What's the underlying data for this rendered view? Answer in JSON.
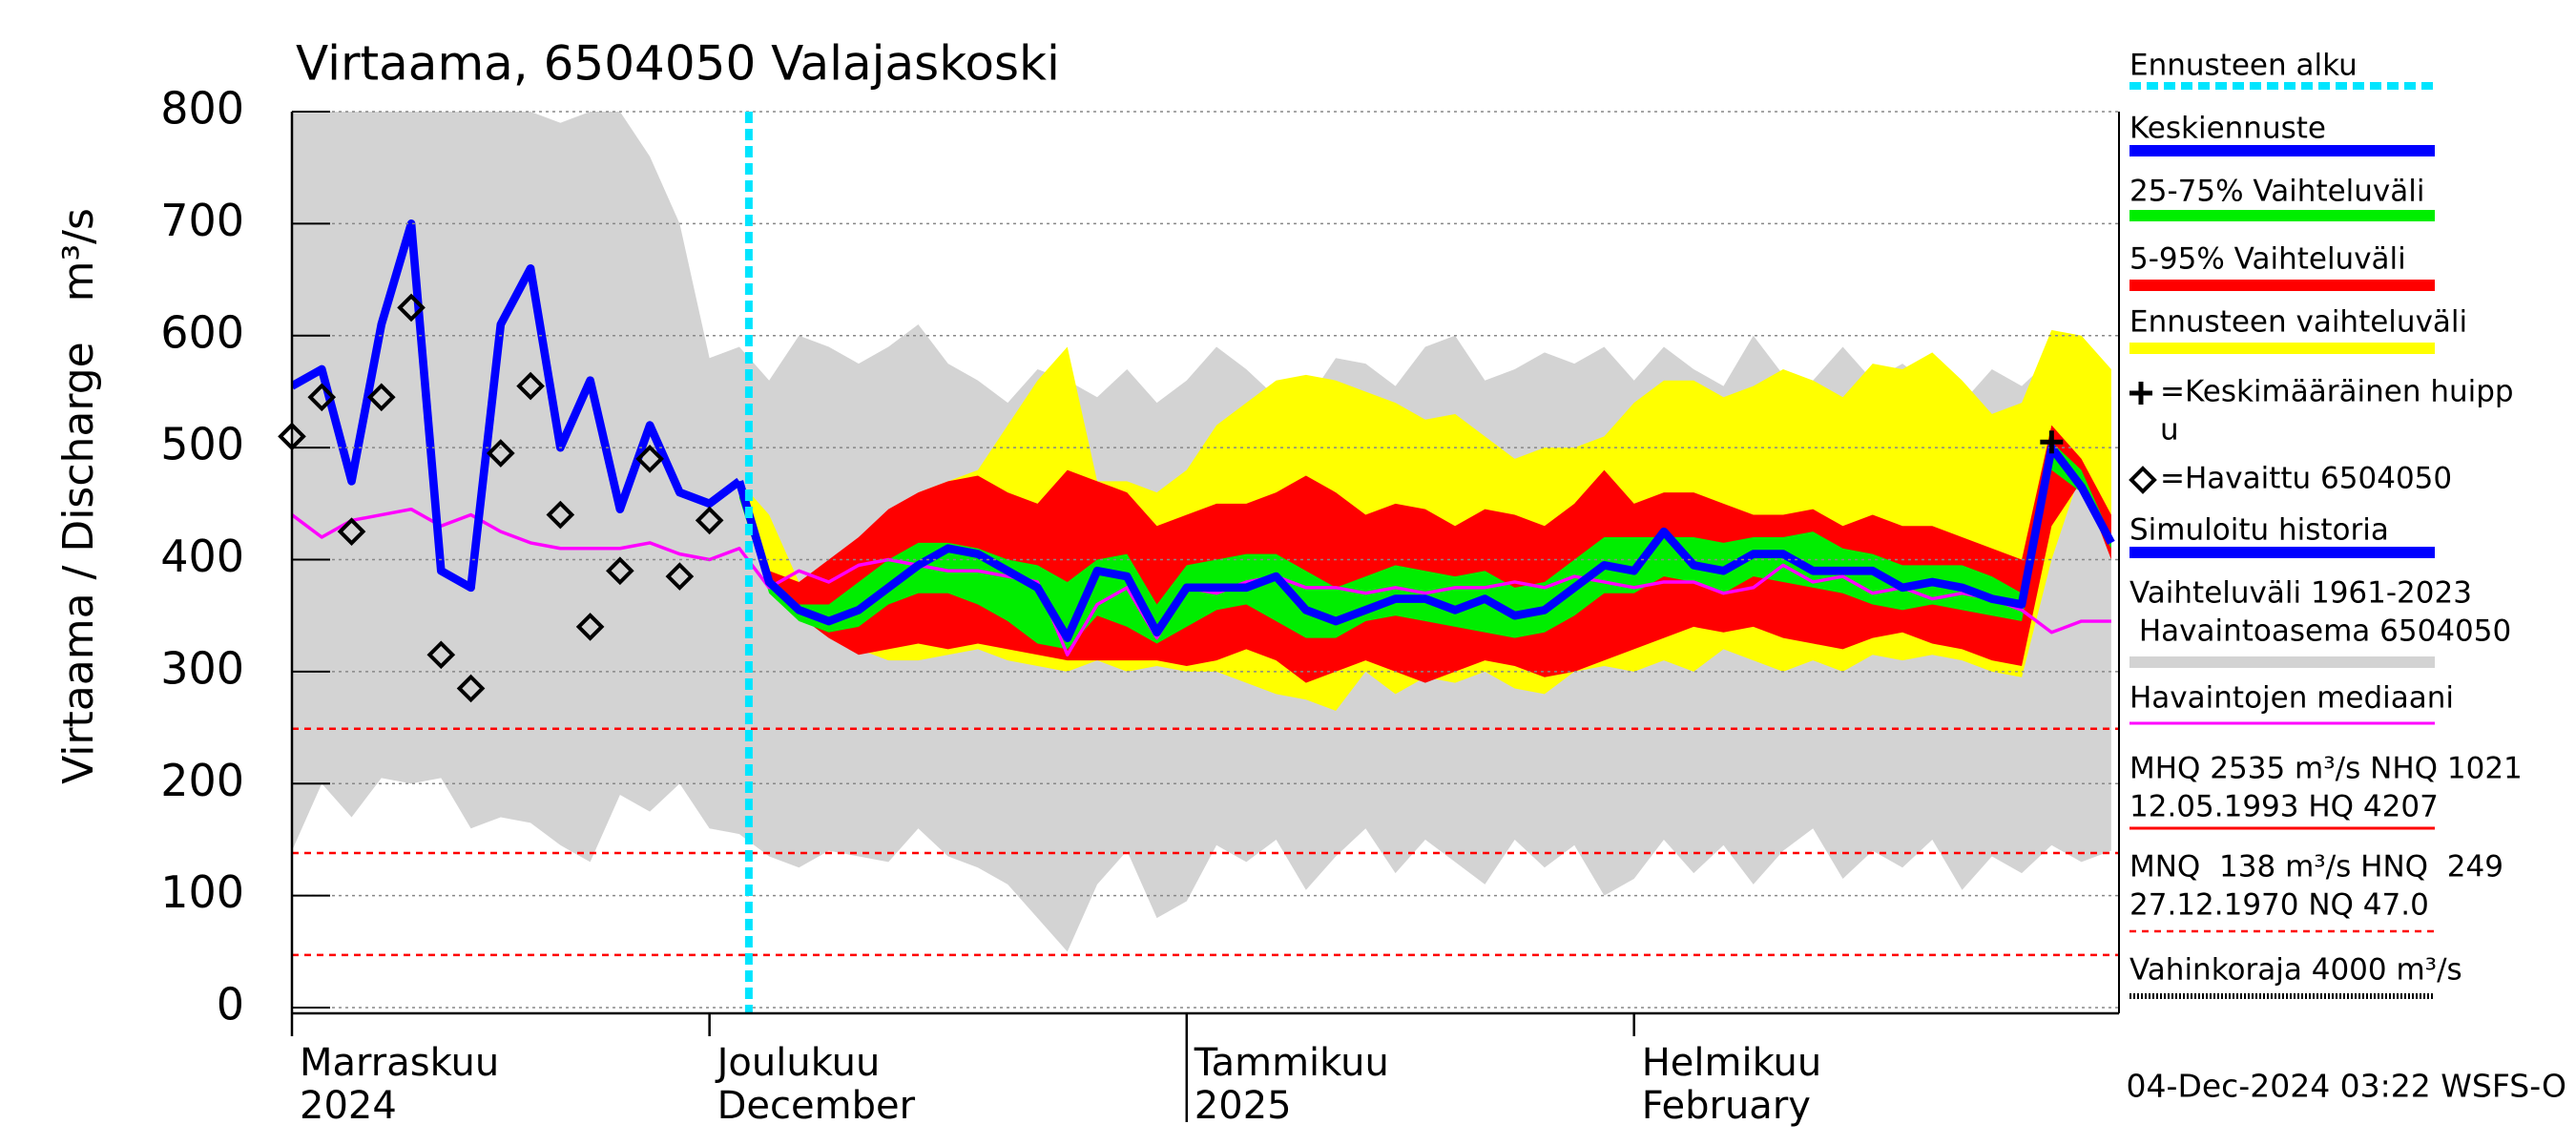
{
  "chart_data": {
    "type": "line",
    "title": "Virtaama, 6504050 Valajaskoski",
    "y_label": "Virtaama / Discharge   m³/s",
    "footer": "04-Dec-2024 03:22 WSFS-O",
    "categories": [
      "Marraskuu",
      null,
      null,
      null,
      null,
      null,
      null,
      null,
      null,
      null,
      null,
      null,
      null,
      null,
      "Joulukuu",
      null,
      null,
      null,
      null,
      null,
      null,
      null,
      null,
      null,
      null,
      null,
      null,
      null,
      null,
      null,
      "Tammikuu",
      null,
      null,
      null,
      null,
      null,
      null,
      null,
      null,
      null,
      null,
      null,
      null,
      null,
      null,
      "Helmikuu",
      null,
      null,
      null,
      null,
      null,
      null,
      null,
      null,
      null,
      null,
      null,
      null,
      null,
      null,
      null,
      null
    ],
    "categories_en": [
      "2024",
      null,
      null,
      null,
      null,
      null,
      null,
      null,
      null,
      null,
      null,
      null,
      null,
      null,
      "December",
      null,
      null,
      null,
      null,
      null,
      null,
      null,
      null,
      null,
      null,
      null,
      null,
      null,
      null,
      null,
      "2025",
      null,
      null,
      null,
      null,
      null,
      null,
      null,
      null,
      null,
      null,
      null,
      null,
      null,
      null,
      "February",
      null,
      null,
      null,
      null,
      null,
      null,
      null,
      null,
      null,
      null,
      null,
      null,
      null,
      null,
      null,
      null
    ],
    "ylim": [
      0,
      800
    ],
    "yticks": [
      0,
      100,
      200,
      300,
      400,
      500,
      600,
      700,
      800
    ],
    "grid": true,
    "bands": [
      {
        "color": "#d3d3d3",
        "high": [
          800,
          800,
          800,
          800,
          800,
          800,
          800,
          800,
          800,
          790,
          800,
          800,
          760,
          700,
          580,
          590,
          560,
          600,
          590,
          575,
          590,
          610,
          575,
          560,
          540,
          570,
          560,
          545,
          570,
          540,
          560,
          590,
          570,
          545,
          540,
          580,
          575,
          555,
          590,
          600,
          560,
          570,
          585,
          575,
          590,
          560,
          590,
          570,
          555,
          600,
          565,
          560,
          590,
          560,
          575,
          555,
          540,
          570,
          555,
          580,
          560,
          545
        ],
        "low": [
          140,
          200,
          170,
          205,
          200,
          205,
          160,
          170,
          165,
          145,
          130,
          190,
          175,
          200,
          160,
          155,
          135,
          125,
          140,
          135,
          130,
          160,
          135,
          125,
          110,
          80,
          50,
          110,
          140,
          80,
          95,
          145,
          130,
          150,
          105,
          135,
          160,
          120,
          150,
          130,
          110,
          150,
          125,
          145,
          100,
          115,
          150,
          120,
          145,
          110,
          140,
          160,
          115,
          140,
          125,
          150,
          105,
          135,
          120,
          145,
          130,
          140
        ]
      },
      {
        "color": "#ffff00",
        "high": [
          null,
          null,
          null,
          null,
          null,
          null,
          null,
          null,
          null,
          null,
          null,
          null,
          null,
          null,
          null,
          470,
          440,
          380,
          390,
          400,
          430,
          460,
          470,
          480,
          520,
          560,
          590,
          470,
          470,
          460,
          480,
          520,
          540,
          560,
          565,
          560,
          550,
          540,
          525,
          530,
          510,
          490,
          500,
          500,
          510,
          540,
          560,
          560,
          545,
          555,
          570,
          560,
          545,
          575,
          570,
          585,
          560,
          530,
          540,
          605,
          600,
          570
        ],
        "low": [
          null,
          null,
          null,
          null,
          null,
          null,
          null,
          null,
          null,
          null,
          null,
          null,
          null,
          null,
          null,
          470,
          390,
          360,
          340,
          320,
          310,
          310,
          315,
          320,
          310,
          305,
          300,
          310,
          300,
          305,
          300,
          300,
          290,
          280,
          275,
          265,
          300,
          280,
          295,
          290,
          300,
          285,
          280,
          300,
          305,
          300,
          310,
          300,
          320,
          310,
          300,
          310,
          300,
          315,
          310,
          315,
          310,
          300,
          295,
          400,
          480,
          430
        ]
      },
      {
        "color": "#ff0000",
        "high": [
          null,
          null,
          null,
          null,
          null,
          null,
          null,
          null,
          null,
          null,
          null,
          null,
          null,
          null,
          null,
          470,
          390,
          380,
          400,
          420,
          445,
          460,
          470,
          475,
          460,
          450,
          480,
          470,
          460,
          430,
          440,
          450,
          450,
          460,
          475,
          460,
          440,
          450,
          445,
          430,
          445,
          440,
          430,
          450,
          480,
          450,
          460,
          460,
          450,
          440,
          440,
          445,
          430,
          440,
          430,
          430,
          420,
          410,
          400,
          520,
          490,
          440
        ],
        "low": [
          null,
          null,
          null,
          null,
          null,
          null,
          null,
          null,
          null,
          null,
          null,
          null,
          null,
          null,
          null,
          460,
          375,
          350,
          330,
          315,
          320,
          325,
          320,
          325,
          320,
          315,
          310,
          310,
          310,
          310,
          305,
          310,
          320,
          310,
          290,
          300,
          310,
          300,
          290,
          300,
          310,
          305,
          295,
          300,
          310,
          320,
          330,
          340,
          335,
          340,
          330,
          325,
          320,
          330,
          335,
          325,
          320,
          310,
          305,
          430,
          470,
          400
        ]
      },
      {
        "color": "#00ee00",
        "high": [
          null,
          null,
          null,
          null,
          null,
          null,
          null,
          null,
          null,
          null,
          null,
          null,
          null,
          null,
          null,
          465,
          385,
          360,
          360,
          380,
          400,
          415,
          415,
          410,
          400,
          395,
          380,
          400,
          405,
          360,
          395,
          400,
          405,
          405,
          390,
          375,
          385,
          395,
          390,
          385,
          390,
          375,
          380,
          400,
          420,
          420,
          420,
          420,
          415,
          420,
          420,
          425,
          410,
          405,
          395,
          395,
          395,
          385,
          370,
          505,
          480,
          420
        ],
        "low": [
          null,
          null,
          null,
          null,
          null,
          null,
          null,
          null,
          null,
          null,
          null,
          null,
          null,
          null,
          null,
          455,
          370,
          345,
          335,
          340,
          360,
          370,
          370,
          360,
          345,
          325,
          320,
          350,
          340,
          325,
          340,
          355,
          360,
          345,
          330,
          330,
          345,
          350,
          345,
          340,
          335,
          330,
          335,
          350,
          370,
          370,
          385,
          380,
          370,
          385,
          380,
          375,
          370,
          360,
          355,
          360,
          355,
          350,
          345,
          480,
          460,
          410
        ]
      }
    ],
    "hlines": {
      "values": [
        249,
        138,
        47.0
      ],
      "color": "#ff0000"
    },
    "series": [
      {
        "color": "#ff00ff",
        "width": 2,
        "values": [
          440,
          420,
          435,
          440,
          445,
          430,
          440,
          425,
          415,
          410,
          410,
          410,
          415,
          405,
          400,
          410,
          375,
          390,
          380,
          395,
          400,
          395,
          390,
          390,
          385,
          380,
          315,
          360,
          375,
          330,
          375,
          370,
          380,
          385,
          375,
          375,
          370,
          375,
          370,
          375,
          375,
          380,
          375,
          385,
          380,
          375,
          380,
          380,
          370,
          375,
          395,
          380,
          385,
          370,
          375,
          365,
          370,
          365,
          355,
          335,
          345,
          345
        ]
      },
      {
        "color": "#0000ff",
        "width": 5,
        "values": [
          555,
          570,
          470,
          610,
          700,
          390,
          375,
          610,
          660,
          500,
          560,
          445,
          520,
          460,
          450,
          470,
          null,
          null,
          null,
          null,
          null,
          null,
          null,
          null,
          null,
          null,
          null,
          null,
          null,
          null,
          null,
          null,
          null,
          null,
          null,
          null,
          null,
          null,
          null,
          null,
          null,
          null,
          null,
          null,
          null,
          null,
          null,
          null,
          null,
          null,
          null,
          null,
          null,
          null,
          null,
          null,
          null,
          null,
          null,
          null,
          null,
          null
        ]
      },
      {
        "color": "#0000ff",
        "width": 5,
        "values": [
          null,
          null,
          null,
          null,
          null,
          null,
          null,
          null,
          null,
          null,
          null,
          null,
          null,
          null,
          null,
          470,
          380,
          355,
          345,
          355,
          375,
          395,
          410,
          405,
          390,
          375,
          330,
          390,
          385,
          335,
          375,
          375,
          375,
          385,
          355,
          345,
          355,
          365,
          365,
          355,
          365,
          350,
          355,
          375,
          395,
          390,
          425,
          395,
          390,
          405,
          405,
          390,
          390,
          390,
          375,
          380,
          375,
          365,
          360,
          500,
          465,
          415
        ]
      }
    ],
    "observed": {
      "color": "#000000",
      "values": [
        510,
        545,
        425,
        545,
        625,
        315,
        285,
        495,
        555,
        440,
        340,
        390,
        490,
        385,
        435,
        null,
        null,
        null,
        null,
        null,
        null,
        null,
        null,
        null,
        null,
        null,
        null,
        null,
        null,
        null,
        null,
        null,
        null,
        null,
        null,
        null,
        null,
        null,
        null,
        null,
        null,
        null,
        null,
        null,
        null,
        null,
        null,
        null,
        null,
        null,
        null,
        null,
        null,
        null,
        null,
        null,
        null,
        null,
        null,
        null,
        null,
        null
      ]
    },
    "peak": {
      "color": "#000000",
      "values": [
        null,
        null,
        null,
        null,
        null,
        null,
        null,
        null,
        null,
        null,
        null,
        null,
        null,
        null,
        null,
        null,
        null,
        null,
        null,
        null,
        null,
        null,
        null,
        null,
        null,
        null,
        null,
        null,
        null,
        null,
        null,
        null,
        null,
        null,
        null,
        null,
        null,
        null,
        null,
        null,
        null,
        null,
        null,
        null,
        null,
        null,
        null,
        null,
        null,
        null,
        null,
        null,
        null,
        null,
        null,
        null,
        null,
        null,
        null,
        505,
        null,
        null
      ]
    },
    "legend": [
      {
        "text": [
          "Ennusteen alku"
        ],
        "color": "#00e5ff",
        "style": "dashed"
      },
      {
        "text": [
          "Keskiennuste"
        ],
        "color": "#0000ff",
        "style": "line"
      },
      {
        "text": [
          "25-75% Vaihteluväli"
        ],
        "color": "#00ee00",
        "style": "line"
      },
      {
        "text": [
          "5-95% Vaihteluväli"
        ],
        "color": "#ff0000",
        "style": "line"
      },
      {
        "text": [
          "Ennusteen vaihteluväli"
        ],
        "color": "#ffff00",
        "style": "line"
      },
      {
        "text": [
          "=Keskimääräinen huipp",
          "u"
        ],
        "color": "#000000",
        "style": "plus"
      },
      {
        "text": [
          "=Havaittu 6504050"
        ],
        "color": "#000000",
        "style": "diamond"
      },
      {
        "text": [
          "Simuloitu historia"
        ],
        "color": "#0000ff",
        "style": "line"
      },
      {
        "text": [
          "Vaihteluväli 1961-2023",
          " Havaintoasema 6504050"
        ],
        "color": "#d3d3d3",
        "style": "line"
      },
      {
        "text": [
          "Havaintojen mediaani"
        ],
        "color": "#ff00ff",
        "style": "thin"
      },
      {
        "text": [
          "MHQ 2535 m³/s NHQ 1021",
          "12.05.1993 HQ 4207"
        ],
        "color": "#ff0000",
        "style": "thin"
      },
      {
        "text": [
          "MNQ  138 m³/s HNQ  249",
          "27.12.1970 NQ 47.0"
        ],
        "color": "#ff0000",
        "style": "dashed-thin"
      },
      {
        "text": [
          "Vahinkoraja 4000 m³/s"
        ],
        "color": "#000000",
        "style": "dotted"
      }
    ]
  }
}
